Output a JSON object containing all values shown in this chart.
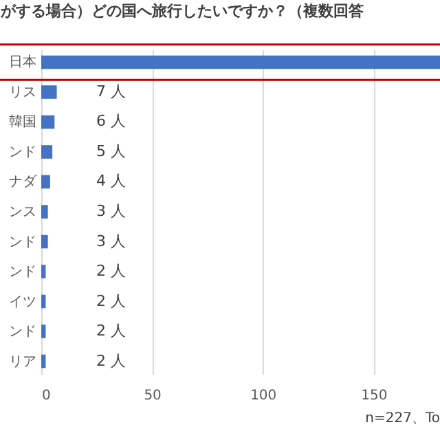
{
  "chart_data": {
    "type": "bar",
    "orientation": "horizontal",
    "title": "がする場合）どの国へ旅行したいですか？（複数回答",
    "categories": [
      "日本",
      "リス",
      "韓国",
      "ンド",
      "ナダ",
      "ンス",
      "ンド",
      "ンド",
      "イツ",
      "ンド",
      "リア"
    ],
    "values": [
      180,
      7,
      6,
      5,
      4,
      3,
      3,
      2,
      2,
      2,
      2
    ],
    "value_labels": [
      null,
      "7 人",
      "6 人",
      "5 人",
      "4 人",
      "3 人",
      "3 人",
      "2 人",
      "2 人",
      "2 人",
      "2 人"
    ],
    "color": "#4472c4",
    "xlim": [
      0,
      180
    ],
    "xticks": [
      0,
      50,
      100,
      150
    ],
    "grid": "x",
    "annotations": [
      "n=227、To"
    ]
  }
}
